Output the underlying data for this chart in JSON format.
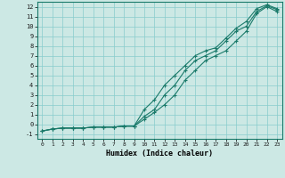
{
  "xlabel": "Humidex (Indice chaleur)",
  "bg_color": "#cce8e4",
  "grid_color": "#88cccc",
  "line_color": "#1a7a6a",
  "xlim": [
    -0.5,
    23.5
  ],
  "ylim": [
    -1.5,
    12.5
  ],
  "xticks": [
    0,
    1,
    2,
    3,
    4,
    5,
    6,
    7,
    8,
    9,
    10,
    11,
    12,
    13,
    14,
    15,
    16,
    17,
    18,
    19,
    20,
    21,
    22,
    23
  ],
  "yticks": [
    -1,
    0,
    1,
    2,
    3,
    4,
    5,
    6,
    7,
    8,
    9,
    10,
    11,
    12
  ],
  "series": [
    [
      [
        0,
        -0.7
      ],
      [
        1,
        -0.5
      ],
      [
        2,
        -0.4
      ],
      [
        3,
        -0.4
      ],
      [
        4,
        -0.4
      ],
      [
        5,
        -0.3
      ],
      [
        6,
        -0.3
      ],
      [
        7,
        -0.3
      ],
      [
        8,
        -0.2
      ],
      [
        9,
        -0.2
      ],
      [
        10,
        0.5
      ],
      [
        11,
        1.2
      ],
      [
        12,
        2.0
      ],
      [
        13,
        3.0
      ],
      [
        14,
        4.5
      ],
      [
        15,
        5.5
      ],
      [
        16,
        6.5
      ],
      [
        17,
        7.0
      ],
      [
        18,
        7.5
      ],
      [
        19,
        8.5
      ],
      [
        20,
        9.5
      ],
      [
        21,
        11.3
      ],
      [
        22,
        12.0
      ],
      [
        23,
        11.5
      ]
    ],
    [
      [
        0,
        -0.7
      ],
      [
        1,
        -0.5
      ],
      [
        2,
        -0.4
      ],
      [
        3,
        -0.4
      ],
      [
        4,
        -0.4
      ],
      [
        5,
        -0.3
      ],
      [
        6,
        -0.3
      ],
      [
        7,
        -0.3
      ],
      [
        8,
        -0.2
      ],
      [
        9,
        -0.2
      ],
      [
        10,
        0.8
      ],
      [
        11,
        1.5
      ],
      [
        12,
        3.0
      ],
      [
        13,
        4.0
      ],
      [
        14,
        5.5
      ],
      [
        15,
        6.5
      ],
      [
        16,
        7.0
      ],
      [
        17,
        7.5
      ],
      [
        18,
        8.5
      ],
      [
        19,
        9.5
      ],
      [
        20,
        10.0
      ],
      [
        21,
        11.5
      ],
      [
        22,
        12.1
      ],
      [
        23,
        11.7
      ]
    ],
    [
      [
        0,
        -0.7
      ],
      [
        1,
        -0.5
      ],
      [
        2,
        -0.4
      ],
      [
        3,
        -0.4
      ],
      [
        4,
        -0.4
      ],
      [
        5,
        -0.3
      ],
      [
        6,
        -0.3
      ],
      [
        7,
        -0.3
      ],
      [
        8,
        -0.2
      ],
      [
        9,
        -0.2
      ],
      [
        10,
        1.5
      ],
      [
        11,
        2.5
      ],
      [
        12,
        4.0
      ],
      [
        13,
        5.0
      ],
      [
        14,
        6.0
      ],
      [
        15,
        7.0
      ],
      [
        16,
        7.5
      ],
      [
        17,
        7.8
      ],
      [
        18,
        8.8
      ],
      [
        19,
        9.8
      ],
      [
        20,
        10.5
      ],
      [
        21,
        11.8
      ],
      [
        22,
        12.2
      ],
      [
        23,
        11.8
      ]
    ]
  ]
}
